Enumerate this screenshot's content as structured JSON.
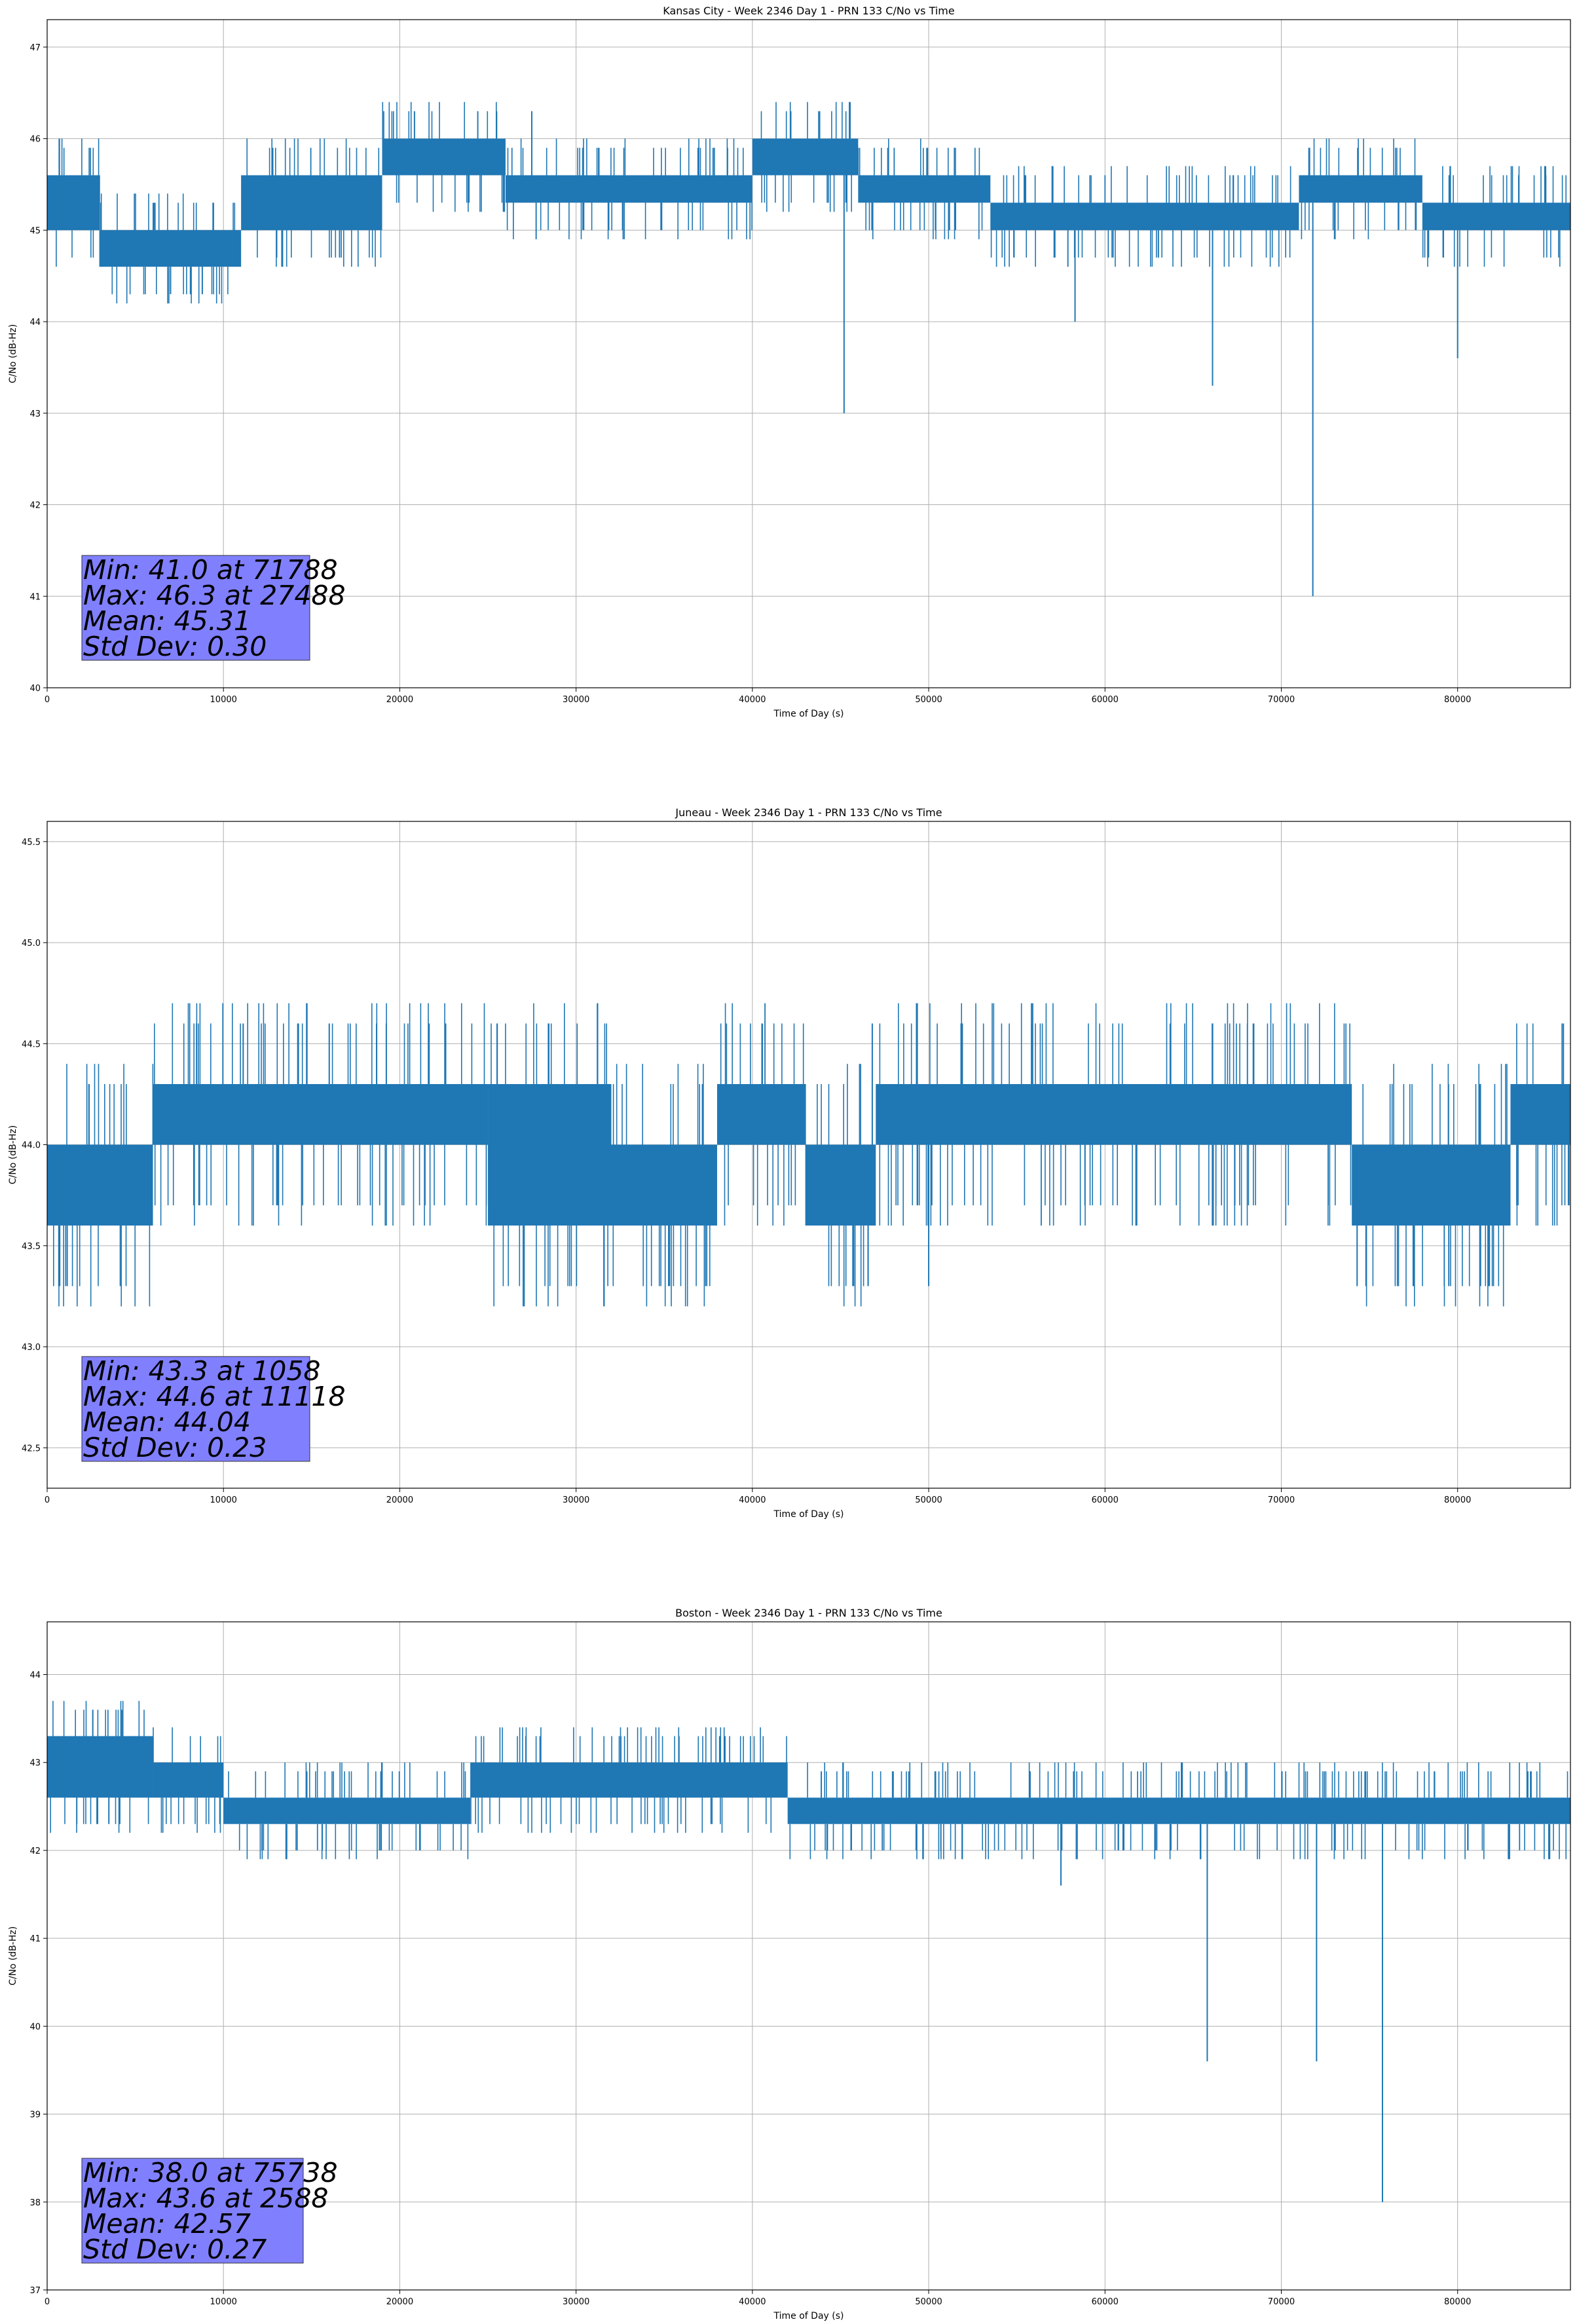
{
  "chart_data": [
    {
      "type": "line",
      "title": "Kansas City - Week 2346 Day 1 - PRN 133 C/No vs Time",
      "xlabel": "Time of Day (s)",
      "ylabel": "C/No (dB-Hz)",
      "xlim": [
        0,
        86400
      ],
      "ylim": [
        40,
        47.3
      ],
      "xticks": [
        0,
        10000,
        20000,
        30000,
        40000,
        50000,
        60000,
        70000,
        80000
      ],
      "yticks": [
        40,
        41,
        42,
        43,
        44,
        45,
        46,
        47
      ],
      "ytick_labels": [
        "40",
        "41",
        "42",
        "43",
        "44",
        "45",
        "46",
        "47"
      ],
      "grid": true,
      "line_color": "#1f77b4",
      "band_segments": [
        {
          "x": [
            0,
            3000
          ],
          "y": [
            45.0,
            45.6
          ]
        },
        {
          "x": [
            3000,
            11000
          ],
          "y": [
            44.6,
            45.0
          ]
        },
        {
          "x": [
            11000,
            19000
          ],
          "y": [
            45.0,
            45.6
          ]
        },
        {
          "x": [
            19000,
            26000
          ],
          "y": [
            45.6,
            46.0
          ]
        },
        {
          "x": [
            26000,
            40000
          ],
          "y": [
            45.3,
            45.6
          ]
        },
        {
          "x": [
            40000,
            46000
          ],
          "y": [
            45.6,
            46.0
          ]
        },
        {
          "x": [
            46000,
            53500
          ],
          "y": [
            45.3,
            45.6
          ]
        },
        {
          "x": [
            53500,
            71000
          ],
          "y": [
            45.0,
            45.3
          ]
        },
        {
          "x": [
            71000,
            78000
          ],
          "y": [
            45.3,
            45.6
          ]
        },
        {
          "x": [
            78000,
            86400
          ],
          "y": [
            45.0,
            45.3
          ]
        }
      ],
      "spikes": [
        {
          "x": 45200,
          "y": 43.0
        },
        {
          "x": 58300,
          "y": 44.0
        },
        {
          "x": 66100,
          "y": 43.3
        },
        {
          "x": 71788,
          "y": 41.0
        },
        {
          "x": 80000,
          "y": 43.6
        },
        {
          "x": 27488,
          "y": 46.3
        },
        {
          "x": 7000,
          "y": 44.3
        },
        {
          "x": 8800,
          "y": 44.3
        }
      ],
      "stats": [
        "Min: 41.0 at 71788",
        "Max: 46.3 at 27488",
        "Mean: 45.31",
        "Std Dev: 0.30"
      ],
      "stats_box_color": "#8080ff"
    },
    {
      "type": "line",
      "title": "Juneau - Week 2346 Day 1 - PRN 133 C/No vs Time",
      "xlabel": "Time of Day (s)",
      "ylabel": "C/No (dB-Hz)",
      "xlim": [
        0,
        86400
      ],
      "ylim": [
        42.3,
        45.6
      ],
      "xticks": [
        0,
        10000,
        20000,
        30000,
        40000,
        50000,
        60000,
        70000,
        80000
      ],
      "yticks": [
        42.5,
        43.0,
        43.5,
        44.0,
        44.5,
        45.0,
        45.5
      ],
      "ytick_labels": [
        "42.5",
        "43.0",
        "43.5",
        "44.0",
        "44.5",
        "45.0",
        "45.5"
      ],
      "grid": true,
      "line_color": "#1f77b4",
      "band_segments": [
        {
          "x": [
            0,
            6000
          ],
          "y": [
            43.6,
            44.0
          ]
        },
        {
          "x": [
            6000,
            25000
          ],
          "y": [
            44.0,
            44.3
          ]
        },
        {
          "x": [
            25000,
            32000
          ],
          "y": [
            43.6,
            44.3
          ]
        },
        {
          "x": [
            32000,
            38000
          ],
          "y": [
            43.6,
            44.0
          ]
        },
        {
          "x": [
            38000,
            43000
          ],
          "y": [
            44.0,
            44.3
          ]
        },
        {
          "x": [
            43000,
            47000
          ],
          "y": [
            43.6,
            44.0
          ]
        },
        {
          "x": [
            47000,
            74000
          ],
          "y": [
            44.0,
            44.3
          ]
        },
        {
          "x": [
            74000,
            83000
          ],
          "y": [
            43.6,
            44.0
          ]
        },
        {
          "x": [
            83000,
            86400
          ],
          "y": [
            44.0,
            44.3
          ]
        }
      ],
      "spikes": [
        {
          "x": 1058,
          "y": 43.3
        },
        {
          "x": 35300,
          "y": 43.3
        },
        {
          "x": 50000,
          "y": 43.3
        },
        {
          "x": 74300,
          "y": 43.3
        },
        {
          "x": 77500,
          "y": 43.3
        },
        {
          "x": 79500,
          "y": 43.3
        },
        {
          "x": 81300,
          "y": 43.3
        },
        {
          "x": 11118,
          "y": 44.6
        },
        {
          "x": 16000,
          "y": 44.6
        },
        {
          "x": 46800,
          "y": 44.6
        },
        {
          "x": 86000,
          "y": 44.6
        }
      ],
      "stats": [
        "Min: 43.3 at 1058",
        "Max: 44.6 at 11118",
        "Mean: 44.04",
        "Std Dev: 0.23"
      ],
      "stats_box_color": "#8080ff"
    },
    {
      "type": "line",
      "title": "Boston - Week 2346 Day 1 - PRN 133 C/No vs Time",
      "xlabel": "Time of Day (s)",
      "ylabel": "C/No (dB-Hz)",
      "xlim": [
        0,
        86400
      ],
      "ylim": [
        37,
        44.6
      ],
      "xticks": [
        0,
        10000,
        20000,
        30000,
        40000,
        50000,
        60000,
        70000,
        80000
      ],
      "yticks": [
        37,
        38,
        39,
        40,
        41,
        42,
        43,
        44
      ],
      "ytick_labels": [
        "37",
        "38",
        "39",
        "40",
        "41",
        "42",
        "43",
        "44"
      ],
      "grid": true,
      "line_color": "#1f77b4",
      "band_segments": [
        {
          "x": [
            0,
            6000
          ],
          "y": [
            42.6,
            43.3
          ]
        },
        {
          "x": [
            6000,
            10000
          ],
          "y": [
            42.6,
            43.0
          ]
        },
        {
          "x": [
            10000,
            24000
          ],
          "y": [
            42.3,
            42.6
          ]
        },
        {
          "x": [
            24000,
            42000
          ],
          "y": [
            42.6,
            43.0
          ]
        },
        {
          "x": [
            42000,
            86400
          ],
          "y": [
            42.3,
            42.6
          ]
        }
      ],
      "spikes": [
        {
          "x": 57500,
          "y": 41.6
        },
        {
          "x": 65800,
          "y": 39.6
        },
        {
          "x": 72000,
          "y": 39.6
        },
        {
          "x": 75738,
          "y": 38.0
        },
        {
          "x": 2588,
          "y": 43.6
        },
        {
          "x": 3500,
          "y": 42.3
        }
      ],
      "stats": [
        "Min: 38.0 at 75738",
        "Max: 43.6 at 2588",
        "Mean: 42.57",
        "Std Dev: 0.27"
      ],
      "stats_box_color": "#8080ff"
    }
  ]
}
